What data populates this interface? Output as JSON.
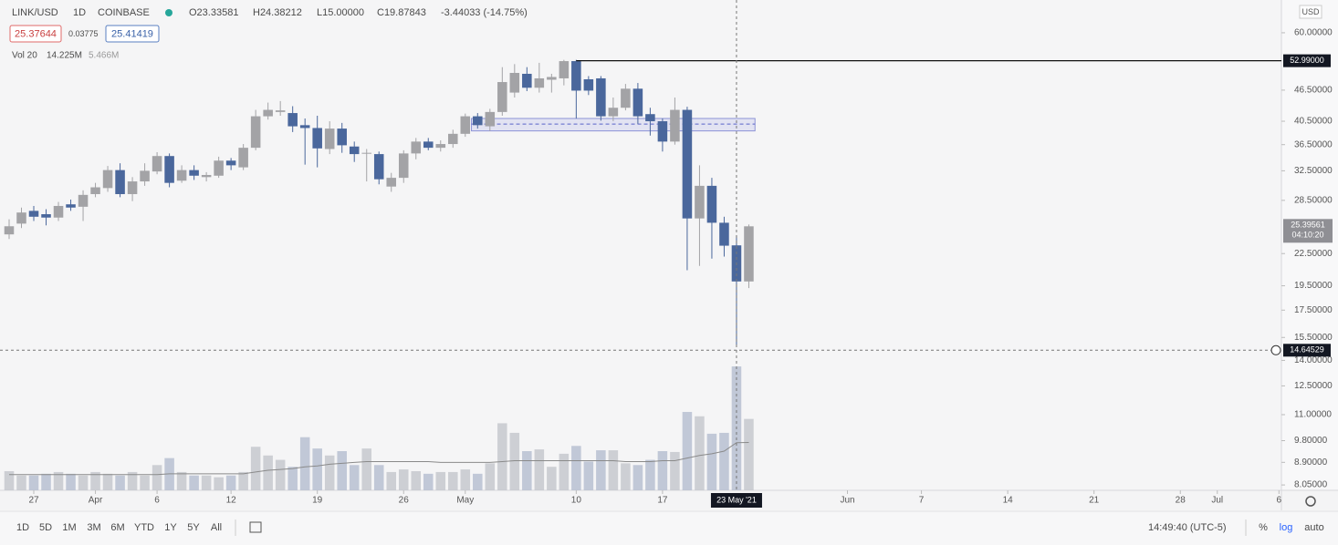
{
  "header": {
    "symbol": "LINK/USD",
    "interval": "1D",
    "exchange": "COINBASE",
    "ohlc": [
      "O23.33581",
      "H24.38212",
      "L15.00000",
      "C19.87843",
      "-3.44033 (-14.75%)"
    ],
    "bid": "25.37644",
    "spread": "0.03775",
    "ask": "25.41419",
    "volume_label": "Vol 20",
    "volume_value": "14.225M",
    "volume_ma": "5.466M",
    "currency": "USD"
  },
  "toolbar": {
    "ranges": [
      "1D",
      "5D",
      "1M",
      "3M",
      "6M",
      "YTD",
      "1Y",
      "5Y",
      "All"
    ],
    "time": "14:49:40 (UTC-5)",
    "options": [
      "%",
      "log",
      "auto"
    ]
  },
  "chart_data": {
    "type": "candlestick",
    "log": true,
    "x": [
      0,
      1,
      2,
      3,
      4,
      5,
      6,
      7,
      8,
      9,
      10,
      11,
      12,
      13,
      14,
      15,
      16,
      17,
      18,
      19,
      20,
      21,
      22,
      23,
      24,
      25,
      26,
      27,
      28,
      29,
      30,
      31,
      32,
      33,
      34,
      35,
      36,
      37,
      38,
      39,
      40,
      41,
      42,
      43,
      44,
      45,
      46,
      47,
      48,
      49,
      50,
      51,
      52,
      53,
      54,
      55,
      56,
      57,
      58,
      59,
      60
    ],
    "open": [
      24.5,
      25.7,
      27.2,
      26.8,
      26.4,
      28.0,
      27.7,
      29.3,
      30.1,
      32.6,
      29.3,
      31.0,
      32.4,
      34.7,
      31.1,
      32.6,
      31.6,
      31.8,
      34.0,
      33.0,
      36.0,
      41.4,
      42.2,
      42.0,
      39.8,
      39.3,
      35.8,
      39.2,
      36.2,
      35.1,
      35.0,
      30.3,
      31.5,
      35.1,
      37.0,
      36.0,
      36.6,
      38.3,
      41.4,
      39.6,
      42.2,
      46.0,
      50.0,
      47.0,
      48.7,
      49.0,
      52.9,
      48.8,
      49.0,
      41.4,
      43.0,
      46.8,
      41.8,
      40.5,
      37.0,
      42.6,
      26.3,
      30.4,
      25.8,
      23.33581,
      19.87843
    ],
    "high": [
      26.2,
      27.6,
      27.8,
      27.4,
      28.3,
      28.6,
      29.8,
      30.8,
      33.2,
      33.6,
      31.6,
      33.6,
      35.3,
      35.1,
      33.3,
      33.3,
      32.3,
      34.6,
      34.4,
      36.6,
      42.6,
      44.0,
      44.3,
      43.3,
      41.0,
      41.5,
      40.5,
      40.2,
      37.0,
      35.8,
      35.4,
      32.2,
      35.6,
      37.6,
      37.6,
      37.2,
      39.0,
      41.9,
      42.0,
      42.8,
      51.5,
      52.2,
      51.5,
      52.5,
      50.0,
      53.2,
      53.2,
      49.5,
      49.5,
      45.0,
      47.8,
      48.0,
      43.0,
      41.0,
      45.0,
      43.2,
      33.3,
      31.5,
      26.5,
      24.38212,
      25.6
    ],
    "low": [
      24.0,
      25.2,
      26.0,
      25.5,
      26.0,
      27.2,
      26.0,
      28.9,
      29.6,
      28.9,
      28.4,
      30.4,
      32.0,
      30.2,
      30.8,
      31.2,
      31.0,
      31.5,
      32.6,
      32.6,
      35.6,
      40.8,
      41.5,
      38.6,
      33.4,
      33.0,
      35.0,
      35.2,
      33.8,
      31.0,
      30.6,
      29.6,
      30.8,
      34.2,
      35.6,
      35.4,
      36.0,
      37.8,
      39.2,
      38.8,
      41.5,
      45.0,
      46.3,
      46.0,
      46.0,
      47.5,
      41.0,
      45.5,
      40.6,
      40.5,
      42.5,
      40.0,
      38.0,
      35.4,
      36.5,
      20.9,
      21.3,
      22.0,
      22.2,
      15.0,
      19.3
    ],
    "close": [
      25.4,
      27.0,
      26.5,
      26.4,
      27.8,
      27.6,
      29.2,
      30.2,
      32.6,
      29.3,
      31.0,
      32.5,
      34.7,
      30.8,
      32.6,
      31.8,
      31.9,
      34.0,
      33.3,
      36.0,
      41.4,
      42.6,
      42.5,
      39.6,
      39.3,
      35.9,
      39.2,
      36.4,
      35.0,
      35.2,
      31.3,
      31.5,
      35.1,
      37.0,
      36.0,
      36.6,
      38.3,
      41.4,
      39.8,
      42.2,
      48.2,
      50.2,
      47.0,
      49.0,
      49.3,
      52.9,
      46.4,
      46.4,
      41.4,
      43.0,
      46.8,
      41.4,
      40.5,
      37.0,
      42.6,
      26.3,
      30.4,
      25.8,
      23.3,
      19.87843,
      25.39561
    ],
    "volume": [
      2.2,
      1.7,
      1.7,
      1.9,
      2.1,
      1.9,
      1.7,
      2.1,
      1.9,
      1.7,
      2.1,
      1.7,
      2.9,
      3.7,
      2.1,
      1.7,
      1.7,
      1.5,
      1.7,
      2.1,
      5.0,
      4.0,
      3.5,
      2.7,
      6.1,
      4.8,
      4.0,
      4.5,
      2.9,
      4.8,
      2.9,
      2.1,
      2.4,
      2.2,
      1.9,
      2.1,
      2.1,
      2.4,
      1.9,
      3.1,
      7.7,
      6.6,
      4.5,
      4.7,
      2.7,
      4.2,
      5.1,
      3.3,
      4.6,
      4.6,
      3.1,
      2.9,
      3.5,
      4.5,
      4.4,
      9.0,
      8.5,
      6.5,
      6.6,
      14.225,
      8.2
    ],
    "volume_ma": [
      1.8,
      1.8,
      1.8,
      1.8,
      1.8,
      1.8,
      1.8,
      1.8,
      1.8,
      1.8,
      1.8,
      1.8,
      1.8,
      1.9,
      1.9,
      1.9,
      1.9,
      1.9,
      1.9,
      1.9,
      2.1,
      2.3,
      2.4,
      2.5,
      2.7,
      2.8,
      3.0,
      3.1,
      3.2,
      3.3,
      3.3,
      3.3,
      3.3,
      3.3,
      3.3,
      3.2,
      3.2,
      3.2,
      3.2,
      3.2,
      3.3,
      3.4,
      3.4,
      3.4,
      3.4,
      3.4,
      3.4,
      3.4,
      3.4,
      3.4,
      3.3,
      3.3,
      3.3,
      3.4,
      3.4,
      3.7,
      4.0,
      4.2,
      4.5,
      5.466,
      5.5
    ],
    "up_color": "#a3a3a6",
    "down_color": "#4a679c",
    "volume_up_color": "#c3c5cc",
    "volume_down_color": "#b4bdd0",
    "ma_color": "#8a8a8a",
    "xlim": [
      -0.74,
      103.2
    ],
    "ylim": [
      7.86,
      69.4
    ],
    "vlim": [
      0,
      56.3
    ],
    "xticks": [
      {
        "value": 2,
        "label": "27"
      },
      {
        "value": 7,
        "label": "Apr"
      },
      {
        "value": 12,
        "label": "6"
      },
      {
        "value": 18,
        "label": "12"
      },
      {
        "value": 25,
        "label": "19"
      },
      {
        "value": 32,
        "label": "26"
      },
      {
        "value": 37,
        "label": "May"
      },
      {
        "value": 46,
        "label": "10"
      },
      {
        "value": 53,
        "label": "17"
      },
      {
        "value": 68,
        "label": "Jun"
      },
      {
        "value": 74,
        "label": "7"
      },
      {
        "value": 81,
        "label": "14"
      },
      {
        "value": 88,
        "label": "21"
      },
      {
        "value": 95,
        "label": "28"
      },
      {
        "value": 98,
        "label": "Jul"
      },
      {
        "value": 103,
        "label": "6"
      }
    ],
    "yticks": [
      {
        "value": 60,
        "label": "60.00000"
      },
      {
        "value": 46.5,
        "label": "46.50000"
      },
      {
        "value": 40.5,
        "label": "40.50000"
      },
      {
        "value": 36.5,
        "label": "36.50000"
      },
      {
        "value": 32.5,
        "label": "32.50000"
      },
      {
        "value": 28.5,
        "label": "28.50000"
      },
      {
        "value": 22.5,
        "label": "22.50000"
      },
      {
        "value": 19.5,
        "label": "19.50000"
      },
      {
        "value": 17.5,
        "label": "17.50000"
      },
      {
        "value": 15.5,
        "label": "15.50000"
      },
      {
        "value": 14,
        "label": "14.00000"
      },
      {
        "value": 12.5,
        "label": "12.50000"
      },
      {
        "value": 11,
        "label": "11.00000"
      },
      {
        "value": 9.8,
        "label": "9.80000"
      },
      {
        "value": 8.9,
        "label": "8.90000"
      },
      {
        "value": 8.05,
        "label": "8.05000"
      }
    ],
    "hline": {
      "value": 52.99,
      "label": "52.99000",
      "x_start": 46
    },
    "zone": {
      "low": 38.8,
      "high": 41.0,
      "mid": 40.0,
      "x_start": 38,
      "x_end": 60
    },
    "crosshair": {
      "x": 59,
      "x_label": "23 May '21",
      "y": 14.64529,
      "y_label": "14.64529"
    },
    "last_price": {
      "value": 25.39561,
      "label": "25.39561",
      "countdown": "04:10:20"
    }
  }
}
